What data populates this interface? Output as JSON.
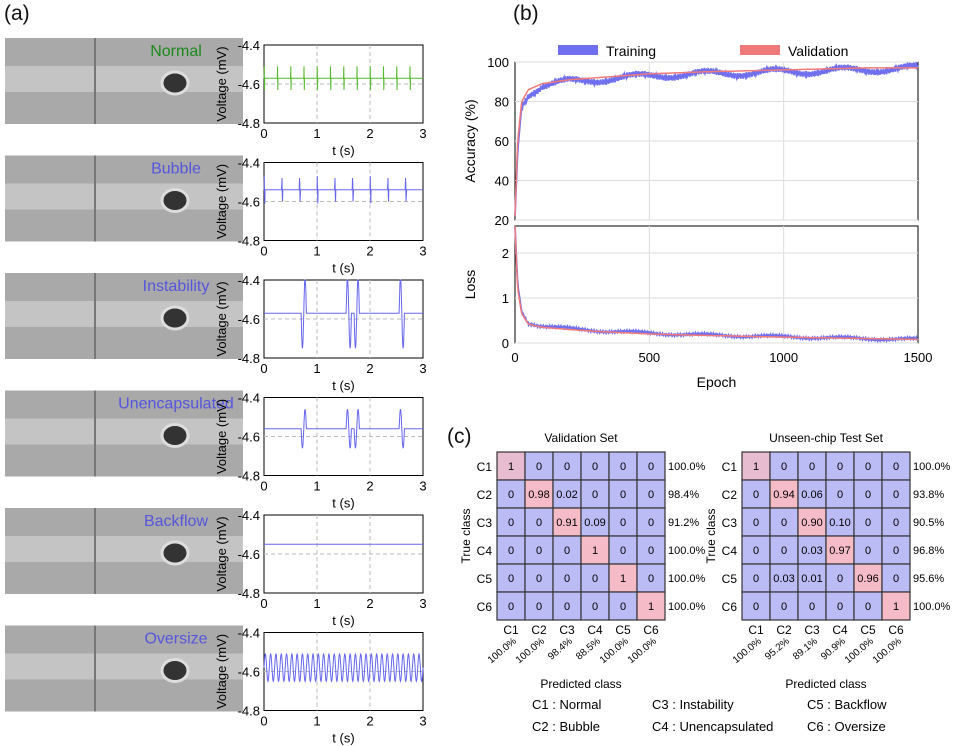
{
  "panels": {
    "a": "(a)",
    "b": "(b)",
    "c": "(c)"
  },
  "panel_a": {
    "rows": [
      {
        "title": "Normal",
        "title_color": "#1a8a1a",
        "trace_color": "#55b82a",
        "pattern": "regular spikes",
        "baseline": -4.57,
        "spikes_per_s": 4
      },
      {
        "title": "Bubble",
        "title_color": "#5555dd",
        "trace_color": "#6666ee",
        "pattern": "regular spikes",
        "baseline": -4.54,
        "spikes_per_s": 3
      },
      {
        "title": "Instability",
        "title_color": "#5555dd",
        "trace_color": "#6666ee",
        "pattern": "irregular large spikes",
        "baseline": -4.57,
        "spikes_per_s": 1
      },
      {
        "title": "Unencapsulated",
        "title_color": "#5555dd",
        "trace_color": "#6666ee",
        "pattern": "irregular spikes",
        "baseline": -4.56,
        "spikes_per_s": 1
      },
      {
        "title": "Backflow",
        "title_color": "#5555dd",
        "trace_color": "#6666ee",
        "pattern": "flat",
        "baseline": -4.55,
        "spikes_per_s": 0
      },
      {
        "title": "Oversize",
        "title_color": "#5555dd",
        "trace_color": "#6666ee",
        "pattern": "dense oscillation",
        "baseline": -4.58,
        "spikes_per_s": 10
      }
    ],
    "xlabel": "t (s)",
    "ylabel": "Voltage  (mV)",
    "xticks": [
      "0",
      "1",
      "2",
      "3"
    ],
    "yticks": [
      "-4.4",
      "-4.6",
      "-4.8"
    ],
    "xlim": [
      0,
      3
    ],
    "ylim": [
      -4.8,
      -4.4
    ]
  },
  "chart_data": [
    {
      "type": "line",
      "title": "",
      "xlabel": "",
      "ylabel": "Accuracy (%)",
      "xlim": [
        0,
        1500
      ],
      "ylim": [
        20,
        100
      ],
      "yticks": [
        "20",
        "40",
        "60",
        "80",
        "100"
      ],
      "grid": true,
      "legend": "top",
      "series": [
        {
          "name": "Training",
          "color": "#6f6ff0",
          "x": [
            0,
            10,
            25,
            50,
            100,
            200,
            300,
            500,
            700,
            1000,
            1300,
            1500
          ],
          "y": [
            22,
            55,
            78,
            84,
            88,
            90,
            91,
            93,
            94,
            95,
            96,
            97
          ]
        },
        {
          "name": "Validation",
          "color": "#f07a7a",
          "x": [
            0,
            10,
            25,
            50,
            100,
            200,
            300,
            500,
            700,
            1000,
            1300,
            1500
          ],
          "y": [
            22,
            60,
            80,
            86,
            89,
            91,
            92,
            94,
            95,
            96,
            97,
            97
          ]
        }
      ]
    },
    {
      "type": "line",
      "title": "",
      "xlabel": "Epoch",
      "ylabel": "Loss",
      "xlim": [
        0,
        1500
      ],
      "ylim": [
        0,
        2.6
      ],
      "xticks": [
        "0",
        "500",
        "1000",
        "1500"
      ],
      "yticks": [
        "0",
        "1",
        "2"
      ],
      "grid": true,
      "series": [
        {
          "name": "Training",
          "color": "#6f6ff0",
          "x": [
            0,
            10,
            25,
            50,
            100,
            200,
            300,
            500,
            700,
            1000,
            1300,
            1500
          ],
          "y": [
            2.6,
            1.3,
            0.7,
            0.45,
            0.38,
            0.32,
            0.28,
            0.22,
            0.18,
            0.14,
            0.1,
            0.08
          ]
        },
        {
          "name": "Validation",
          "color": "#f07a7a",
          "x": [
            0,
            10,
            25,
            50,
            100,
            200,
            300,
            500,
            700,
            1000,
            1300,
            1500
          ],
          "y": [
            2.6,
            1.2,
            0.65,
            0.42,
            0.35,
            0.3,
            0.26,
            0.2,
            0.17,
            0.13,
            0.1,
            0.08
          ]
        }
      ]
    },
    {
      "type": "heatmap",
      "title": "Validation Set",
      "xlabel": "Predicted class",
      "ylabel": "True class",
      "categories": [
        "C1",
        "C2",
        "C3",
        "C4",
        "C5",
        "C6"
      ],
      "matrix": [
        [
          "1",
          "0",
          "0",
          "0",
          "0",
          "0"
        ],
        [
          "0",
          "0.98",
          "0.02",
          "0",
          "0",
          "0"
        ],
        [
          "0",
          "0",
          "0.91",
          "0.09",
          "0",
          "0"
        ],
        [
          "0",
          "0",
          "0",
          "1",
          "0",
          "0"
        ],
        [
          "0",
          "0",
          "0",
          "0",
          "1",
          "0"
        ],
        [
          "0",
          "0",
          "0",
          "0",
          "0",
          "1"
        ]
      ],
      "row_accuracy": [
        "100.0%",
        "98.4%",
        "91.2%",
        "100.0%",
        "100.0%",
        "100.0%"
      ],
      "col_accuracy": [
        "100.0%",
        "100.0%",
        "98.4%",
        "88.5%",
        "100.0%",
        "100.0%"
      ]
    },
    {
      "type": "heatmap",
      "title": "Unseen-chip Test Set",
      "xlabel": "Predicted class",
      "ylabel": "True class",
      "categories": [
        "C1",
        "C2",
        "C3",
        "C4",
        "C5",
        "C6"
      ],
      "matrix": [
        [
          "1",
          "0",
          "0",
          "0",
          "0",
          "0"
        ],
        [
          "0",
          "0.94",
          "0.06",
          "0",
          "0",
          "0"
        ],
        [
          "0",
          "0",
          "0.90",
          "0.10",
          "0",
          "0"
        ],
        [
          "0",
          "0",
          "0.03",
          "0.97",
          "0",
          "0"
        ],
        [
          "0",
          "0.03",
          "0.01",
          "0",
          "0.96",
          "0"
        ],
        [
          "0",
          "0",
          "0",
          "0",
          "0",
          "1"
        ]
      ],
      "row_accuracy": [
        "100.0%",
        "93.8%",
        "90.5%",
        "96.8%",
        "95.6%",
        "100.0%"
      ],
      "col_accuracy": [
        "100.0%",
        "95.2%",
        "89.1%",
        "90.9%",
        "100.0%",
        "100.0%"
      ]
    }
  ],
  "colors": {
    "offdiag": "#bbbbf5",
    "diag": "#f5bcc8",
    "diag_first": "#e8bcd0"
  },
  "class_legend": [
    "C1 : Normal",
    "C3 : Instability",
    "C5 : Backflow",
    "C2 : Bubble",
    "C4 : Unencapsulated",
    "C6 : Oversize"
  ]
}
